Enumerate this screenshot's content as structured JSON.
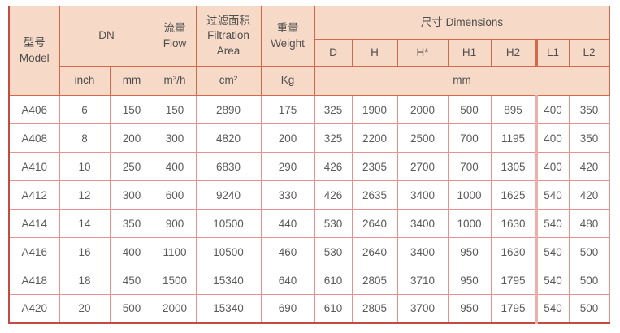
{
  "table": {
    "header": {
      "model": {
        "zh": "型号",
        "en": "Model"
      },
      "dn": "DN",
      "flow": {
        "zh": "流量",
        "en": "Flow"
      },
      "filtration_area": {
        "zh": "过滤面积",
        "en": "Filtration Area"
      },
      "weight": {
        "zh": "重量",
        "en": "Weight"
      },
      "dimensions": {
        "zh": "尺寸",
        "en": "Dimensions"
      },
      "dims": [
        "D",
        "H",
        "H*",
        "H1",
        "H2",
        "L1",
        "L2"
      ]
    },
    "units": {
      "inch": "inch",
      "mm": "mm",
      "flow": "m³/h",
      "area": "cm²",
      "weight": "Kg",
      "dims": "mm"
    },
    "rows": [
      {
        "model": "A406",
        "inch": "6",
        "mm": "150",
        "flow": "150",
        "area": "2890",
        "weight": "175",
        "d": "325",
        "h": "1900",
        "h_star": "2000",
        "h1": "500",
        "h2": "895",
        "l1": "400",
        "l2": "350"
      },
      {
        "model": "A408",
        "inch": "8",
        "mm": "200",
        "flow": "300",
        "area": "4820",
        "weight": "200",
        "d": "325",
        "h": "2200",
        "h_star": "2500",
        "h1": "700",
        "h2": "1195",
        "l1": "400",
        "l2": "350"
      },
      {
        "model": "A410",
        "inch": "10",
        "mm": "250",
        "flow": "400",
        "area": "6830",
        "weight": "290",
        "d": "426",
        "h": "2305",
        "h_star": "2700",
        "h1": "700",
        "h2": "1305",
        "l1": "400",
        "l2": "420"
      },
      {
        "model": "A412",
        "inch": "12",
        "mm": "300",
        "flow": "600",
        "area": "9240",
        "weight": "330",
        "d": "426",
        "h": "2635",
        "h_star": "3400",
        "h1": "1000",
        "h2": "1625",
        "l1": "540",
        "l2": "420"
      },
      {
        "model": "A414",
        "inch": "14",
        "mm": "350",
        "flow": "900",
        "area": "10500",
        "weight": "440",
        "d": "530",
        "h": "2640",
        "h_star": "3400",
        "h1": "1000",
        "h2": "1630",
        "l1": "540",
        "l2": "480"
      },
      {
        "model": "A416",
        "inch": "16",
        "mm": "400",
        "flow": "1100",
        "area": "10500",
        "weight": "460",
        "d": "530",
        "h": "2640",
        "h_star": "3400",
        "h1": "950",
        "h2": "1630",
        "l1": "540",
        "l2": "500"
      },
      {
        "model": "A418",
        "inch": "18",
        "mm": "450",
        "flow": "1500",
        "area": "15340",
        "weight": "640",
        "d": "610",
        "h": "2805",
        "h_star": "3710",
        "h1": "950",
        "h2": "1795",
        "l1": "540",
        "l2": "500"
      },
      {
        "model": "A420",
        "inch": "20",
        "mm": "500",
        "flow": "2000",
        "area": "15340",
        "weight": "690",
        "d": "610",
        "h": "2805",
        "h_star": "3700",
        "h1": "950",
        "h2": "1795",
        "l1": "540",
        "l2": "500"
      }
    ],
    "colors": {
      "header_bg": "#f6d9c7",
      "header_border": "#d2694b",
      "body_border": "#e8918e",
      "outer_border": "#c24b42",
      "text": "#5a5a5a"
    }
  }
}
